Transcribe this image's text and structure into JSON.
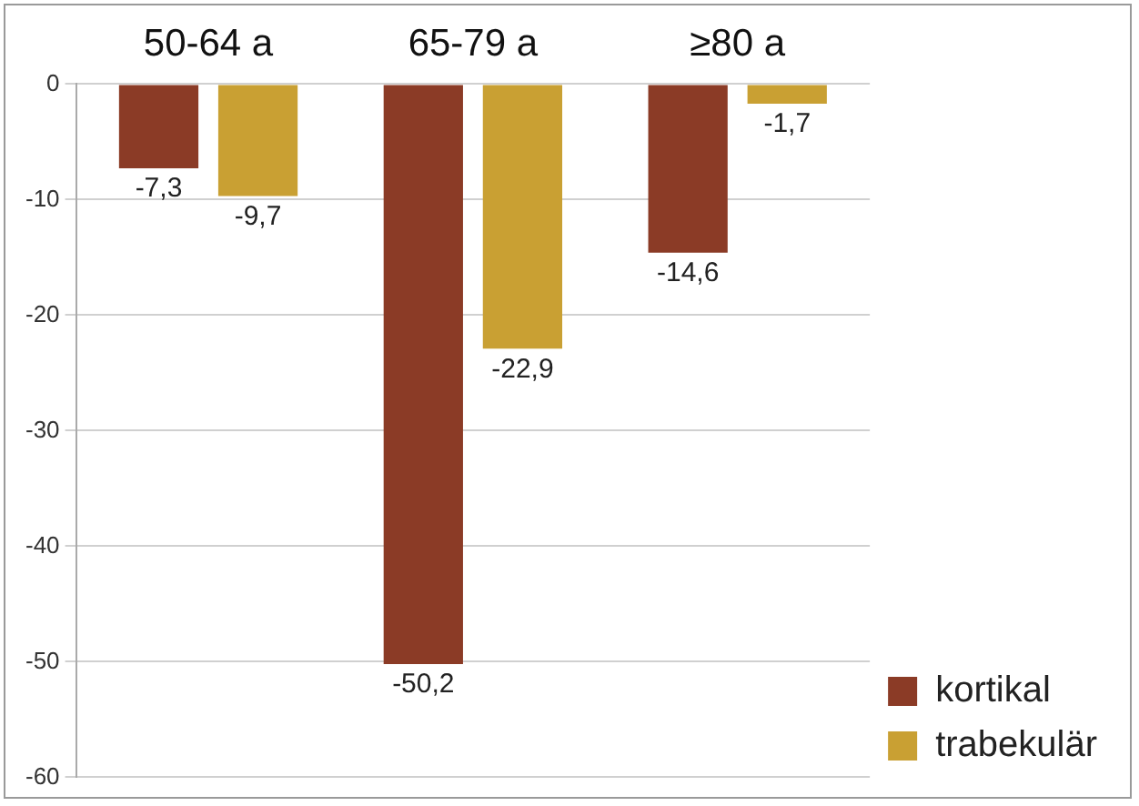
{
  "chart_data": {
    "type": "bar",
    "categories": [
      "50-64 a",
      "65-79 a",
      "≥80 a"
    ],
    "series": [
      {
        "name": "kortikal",
        "color": "#8b3b26",
        "values": [
          -7.3,
          -50.2,
          -14.6
        ],
        "value_labels": [
          "-7,3",
          "-50,2",
          "-14,6"
        ]
      },
      {
        "name": "trabekulär",
        "color": "#c9a033",
        "values": [
          -9.7,
          -22.9,
          -1.7
        ],
        "value_labels": [
          "-9,7",
          "-22,9",
          "-1,7"
        ]
      }
    ],
    "ylim": [
      -60,
      0
    ],
    "yticks": [
      -60,
      -50,
      -40,
      -30,
      -20,
      -10,
      0
    ],
    "grid": "y",
    "legend": "bottom right"
  }
}
